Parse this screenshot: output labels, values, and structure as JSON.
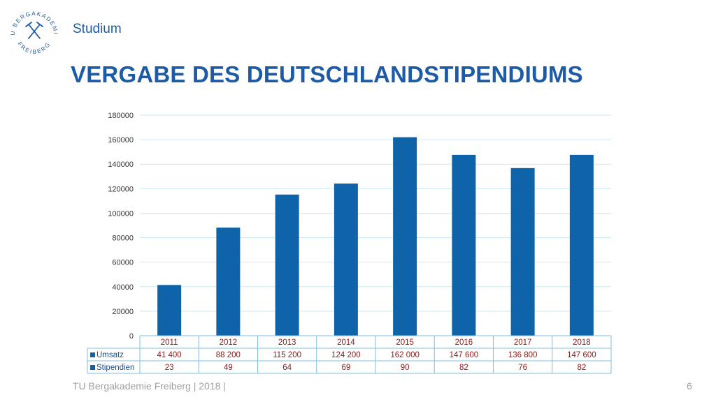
{
  "header": {
    "logo_text_top": "TU BERGAKADEMIE",
    "logo_text_bottom": "FREIBERG",
    "section": "Studium",
    "title": "VERGABE DES DEUTSCHLANDSTIPENDIUMS"
  },
  "footer": {
    "text": "TU Bergakademie Freiberg | 2018 |",
    "page": "6"
  },
  "colors": {
    "brand": "#1d5ba6",
    "bar": "#0f63a8",
    "grid": "#cde8f4",
    "table_value": "#8b1a1a"
  },
  "chart_data": {
    "type": "bar",
    "categories": [
      "2011",
      "2012",
      "2013",
      "2014",
      "2015",
      "2016",
      "2017",
      "2018"
    ],
    "series": [
      {
        "name": "Umsatz",
        "values": [
          41400,
          88200,
          115200,
          124200,
          162000,
          147600,
          136800,
          147600
        ],
        "display": [
          "41 400",
          "88 200",
          "115 200",
          "124 200",
          "162 000",
          "147 600",
          "136 800",
          "147 600"
        ]
      },
      {
        "name": "Stipendien",
        "values": [
          23,
          49,
          64,
          69,
          90,
          82,
          76,
          82
        ],
        "display": [
          "23",
          "49",
          "64",
          "69",
          "90",
          "82",
          "76",
          "82"
        ]
      }
    ],
    "ylim": [
      0,
      180000
    ],
    "yticks": [
      0,
      20000,
      40000,
      60000,
      80000,
      100000,
      120000,
      140000,
      160000,
      180000
    ],
    "ytick_labels": [
      "0",
      "20000",
      "40000",
      "60000",
      "80000",
      "100000",
      "120000",
      "140000",
      "160000",
      "180000"
    ],
    "grid": true,
    "legend": "data-table"
  }
}
